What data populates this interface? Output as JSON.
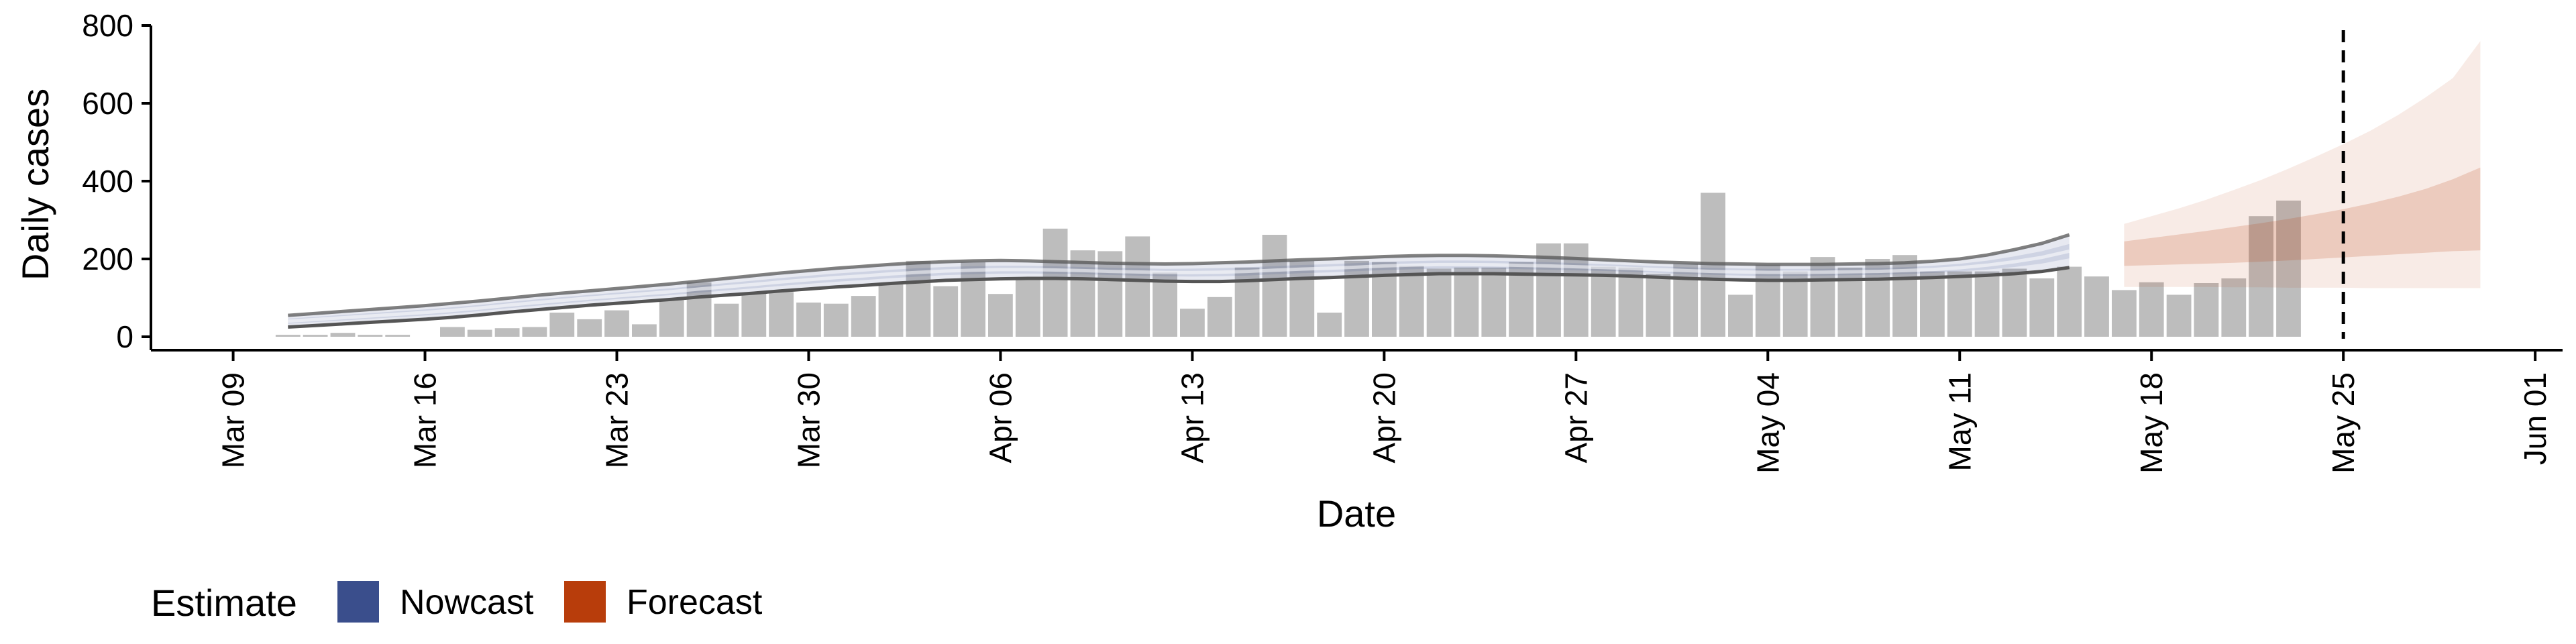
{
  "chart_data": {
    "type": "bar",
    "xlabel": "Date",
    "ylabel": "Daily cases",
    "ylim": [
      0,
      800
    ],
    "y_ticks": [
      "0",
      "200",
      "400",
      "600",
      "800"
    ],
    "x_range": [
      "2020-03-06",
      "2020-06-02"
    ],
    "x_ticks": [
      {
        "date": "2020-03-09",
        "label": "Mar 09"
      },
      {
        "date": "2020-03-16",
        "label": "Mar 16"
      },
      {
        "date": "2020-03-23",
        "label": "Mar 23"
      },
      {
        "date": "2020-03-30",
        "label": "Mar 30"
      },
      {
        "date": "2020-04-06",
        "label": "Apr 06"
      },
      {
        "date": "2020-04-13",
        "label": "Apr 13"
      },
      {
        "date": "2020-04-20",
        "label": "Apr 20"
      },
      {
        "date": "2020-04-27",
        "label": "Apr 27"
      },
      {
        "date": "2020-05-04",
        "label": "May 04"
      },
      {
        "date": "2020-05-11",
        "label": "May 11"
      },
      {
        "date": "2020-05-18",
        "label": "May 18"
      },
      {
        "date": "2020-05-25",
        "label": "May 25"
      },
      {
        "date": "2020-06-01",
        "label": "Jun 01"
      }
    ],
    "grid": false,
    "legend": {
      "title": "Estimate",
      "position": "bottom-left"
    },
    "colors": {
      "bars": "#bdbdbd",
      "nowcast": "#3a4e8c",
      "forecast": "#b83d0b",
      "median_line": "#555555",
      "reference_line": "#000000"
    },
    "reported_cases": {
      "start_date": "2020-03-11",
      "values": [
        5,
        5,
        10,
        5,
        5,
        0,
        25,
        18,
        22,
        25,
        62,
        45,
        68,
        32,
        98,
        140,
        85,
        112,
        115,
        88,
        85,
        105,
        135,
        195,
        130,
        192,
        110,
        150,
        278,
        222,
        220,
        258,
        165,
        72,
        102,
        178,
        262,
        195,
        62,
        195,
        192,
        182,
        175,
        178,
        178,
        192,
        240,
        240,
        180,
        178,
        162,
        188,
        370,
        108,
        185,
        168,
        205,
        178,
        200,
        210,
        168,
        168,
        168,
        175,
        150,
        180,
        155,
        120,
        140,
        108,
        138,
        150,
        310,
        350
      ]
    },
    "nowcast_interval": {
      "start_date": "2020-03-11",
      "lower": [
        25,
        29,
        33,
        37,
        41,
        45,
        50,
        56,
        63,
        69,
        75,
        81,
        86,
        91,
        96,
        102,
        107,
        112,
        118,
        123,
        128,
        132,
        137,
        141,
        145,
        147,
        149,
        150,
        150,
        149,
        147,
        145,
        143,
        142,
        142,
        144,
        147,
        150,
        152,
        155,
        158,
        160,
        162,
        162,
        162,
        161,
        160,
        159,
        158,
        156,
        153,
        150,
        148,
        146,
        145,
        145,
        146,
        147,
        148,
        150,
        152,
        155,
        158,
        162,
        168,
        178
      ],
      "upper": [
        55,
        60,
        65,
        70,
        75,
        80,
        86,
        92,
        99,
        106,
        112,
        118,
        124,
        130,
        136,
        143,
        150,
        157,
        164,
        170,
        176,
        181,
        186,
        190,
        193,
        195,
        196,
        195,
        193,
        191,
        189,
        188,
        187,
        188,
        190,
        192,
        195,
        198,
        200,
        203,
        206,
        208,
        209,
        209,
        208,
        206,
        204,
        201,
        198,
        195,
        192,
        190,
        188,
        187,
        186,
        186,
        186,
        187,
        188,
        190,
        194,
        200,
        210,
        224,
        240,
        262
      ]
    },
    "forecast_interval": {
      "start_date": "2020-05-17",
      "outer_lower": [
        128,
        128,
        128,
        128,
        127,
        127,
        126,
        126,
        126,
        125,
        125,
        125,
        125,
        125
      ],
      "outer_upper": [
        290,
        310,
        330,
        352,
        377,
        403,
        432,
        463,
        495,
        530,
        570,
        615,
        665,
        760
      ],
      "inner_lower": [
        182,
        184,
        186,
        188,
        190,
        193,
        196,
        200,
        204,
        208,
        212,
        216,
        220,
        222
      ],
      "inner_upper": [
        245,
        254,
        263,
        272,
        282,
        292,
        303,
        315,
        328,
        343,
        360,
        380,
        405,
        435
      ]
    },
    "reference_date": "2020-05-25"
  }
}
